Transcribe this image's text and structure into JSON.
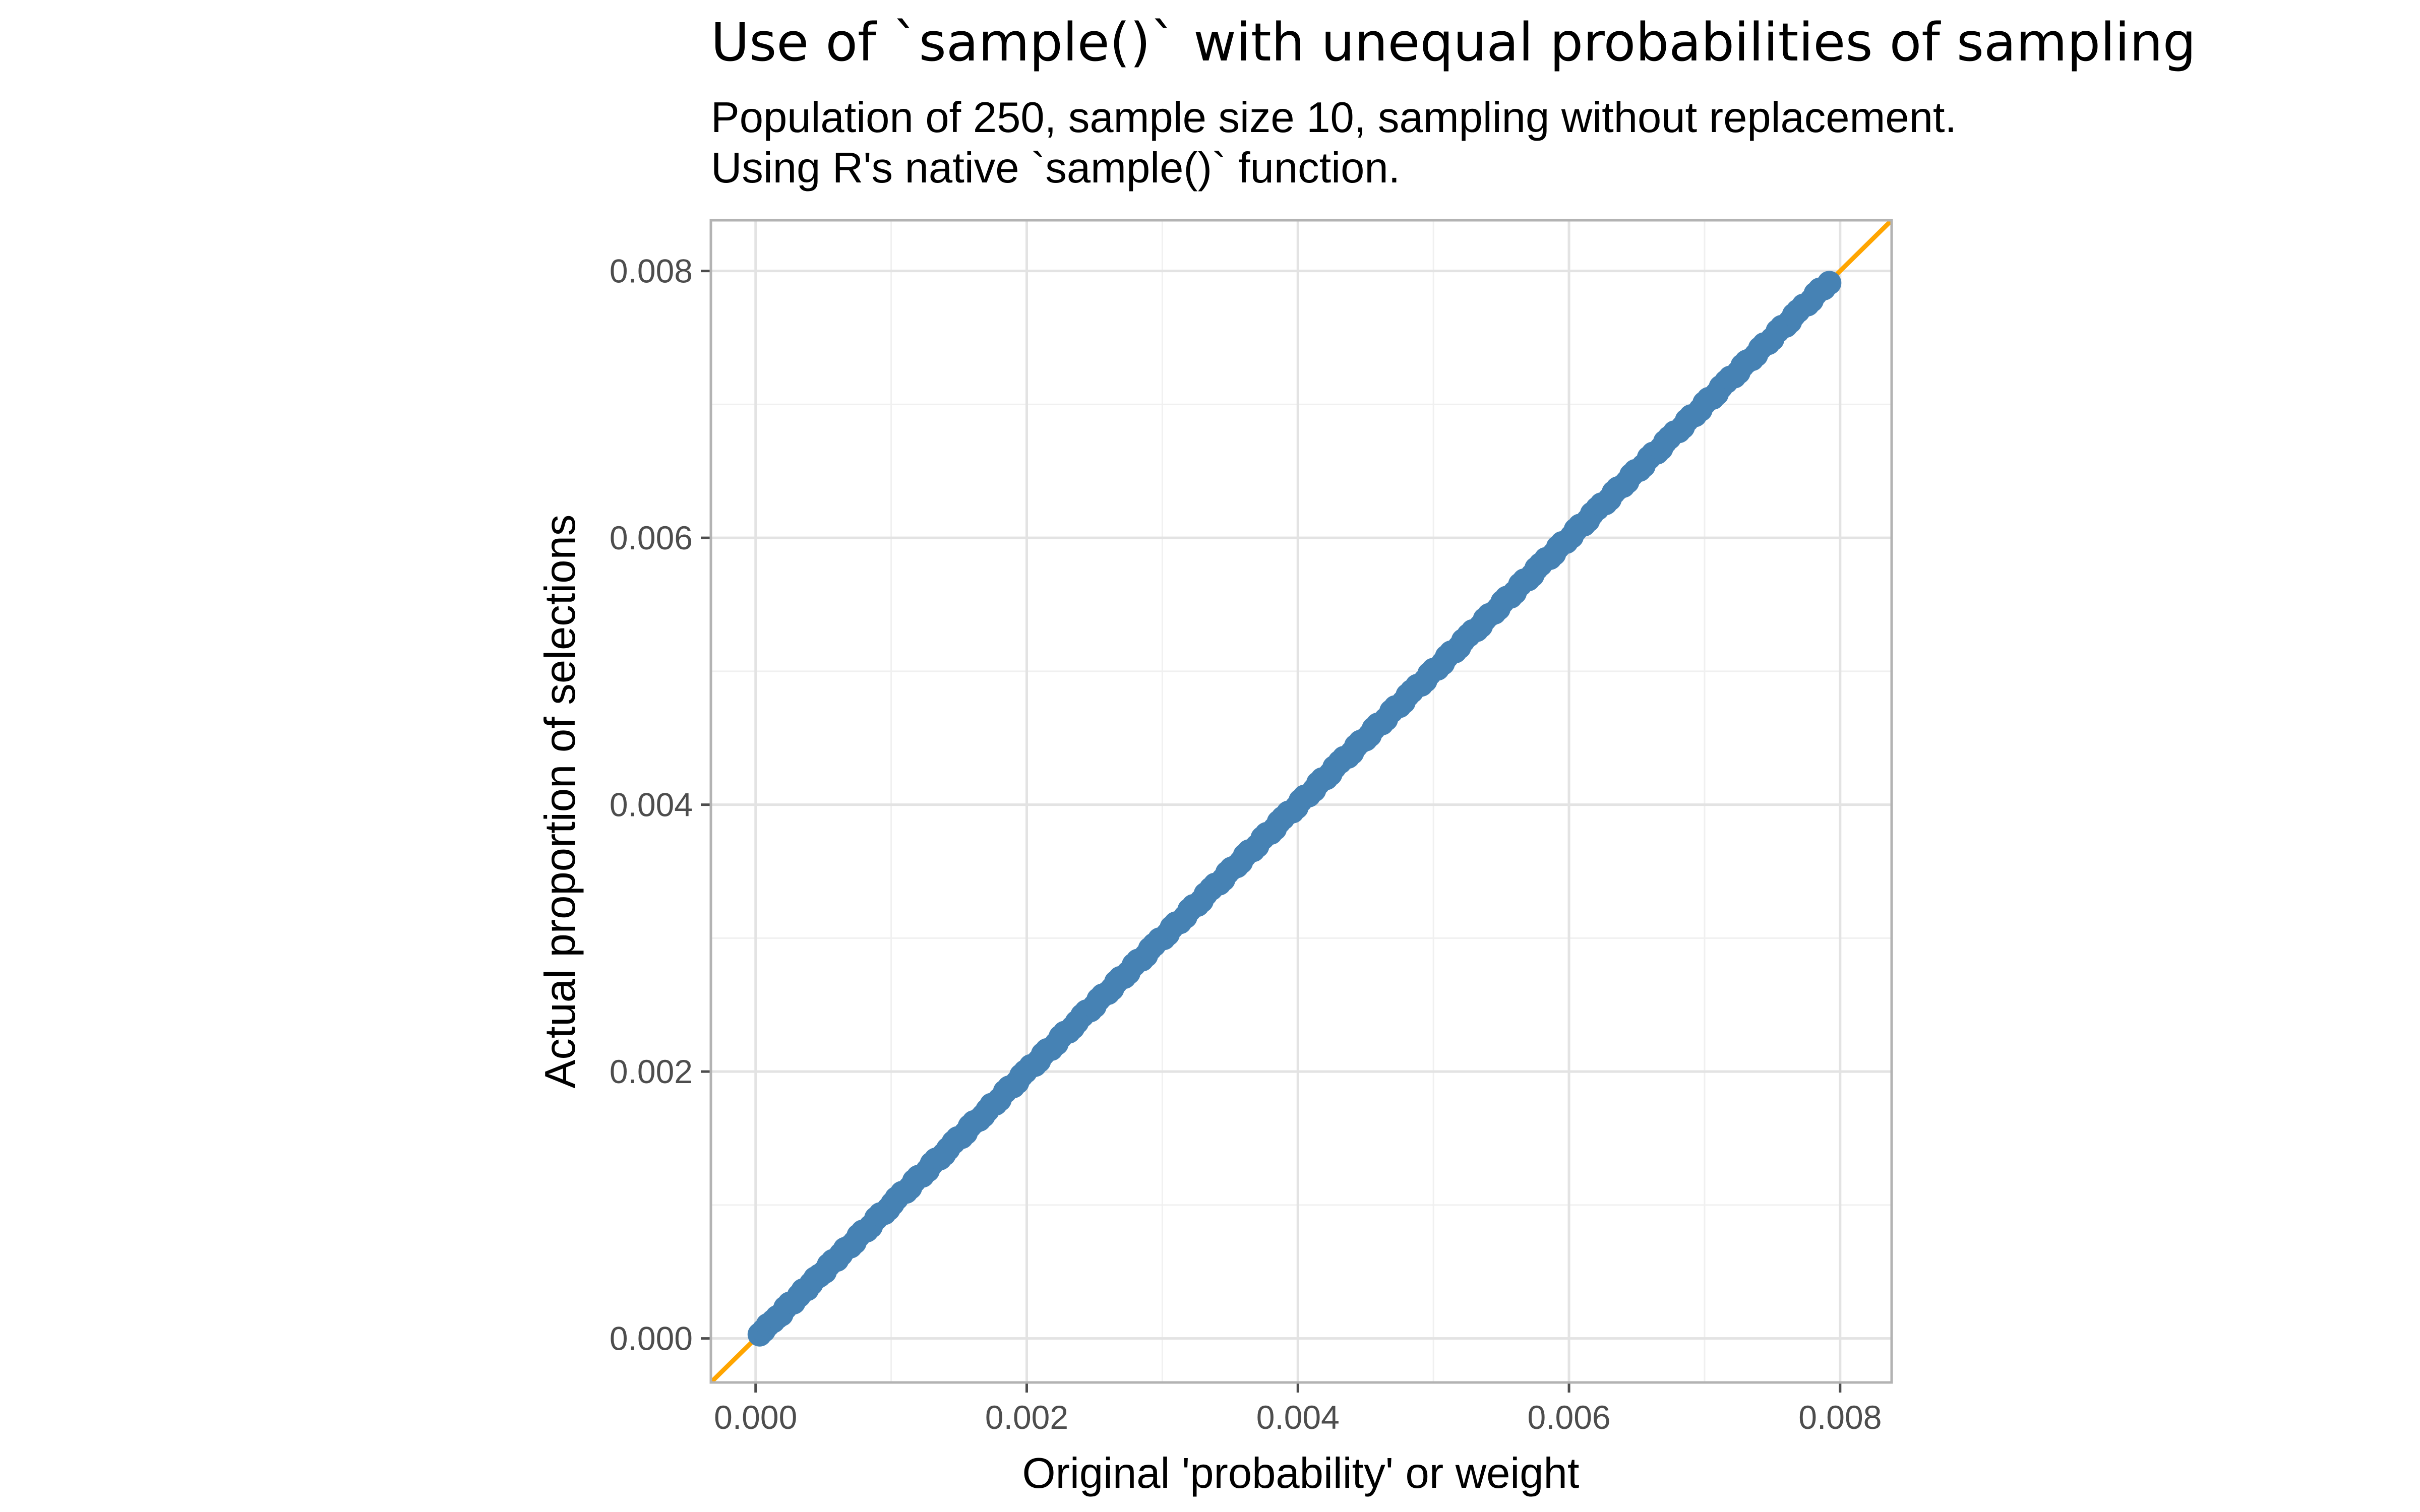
{
  "chart_data": {
    "type": "scatter",
    "title": "Use of `sample()` with unequal probabilities of sampling",
    "subtitle_lines": [
      "Population of 250, sample size 10, sampling without replacement.",
      "Using R's native `sample()` function."
    ],
    "xlabel": "Original 'probability' or weight",
    "ylabel": "Actual proportion of selections",
    "xlim": [
      -0.00033,
      0.00838
    ],
    "ylim": [
      -0.00033,
      0.00838
    ],
    "x_ticks": [
      0.0,
      0.002,
      0.004,
      0.006,
      0.008
    ],
    "x_tick_labels": [
      "0.000",
      "0.002",
      "0.004",
      "0.006",
      "0.008"
    ],
    "y_ticks": [
      0.0,
      0.002,
      0.004,
      0.006,
      0.008
    ],
    "y_tick_labels": [
      "0.000",
      "0.002",
      "0.004",
      "0.006",
      "0.008"
    ],
    "grid": true,
    "reference_line": {
      "slope": 1,
      "intercept": 0,
      "color": "#FFA500"
    },
    "point_color": "#4682B4",
    "n_points": 250,
    "x_min": 3e-05,
    "x_max": 0.00792,
    "series": [
      {
        "x": [
          3e-05,
          6e-05,
          9e-05,
          0.00013,
          0.00016,
          0.00019,
          0.00022,
          0.00025,
          0.00028,
          0.00032,
          0.00035,
          0.00038,
          0.00041,
          0.00044,
          0.00047,
          0.00051,
          0.00054,
          0.00057,
          0.0006,
          0.00063,
          0.00066,
          0.0007,
          0.00073,
          0.00076,
          0.00079,
          0.00082,
          0.00085,
          0.00089,
          0.00092,
          0.00095,
          0.00098,
          0.00101,
          0.00104,
          0.00108,
          0.00111,
          0.00114,
          0.00117,
          0.0012,
          0.00123,
          0.00127,
          0.0013,
          0.00133,
          0.00136,
          0.00139,
          0.00142,
          0.00146,
          0.00149,
          0.00152,
          0.00155,
          0.00158,
          0.00161,
          0.00165,
          0.00168,
          0.00171,
          0.00174,
          0.00177,
          0.0018,
          0.00184,
          0.00187,
          0.0019,
          0.00193,
          0.00196,
          0.00199,
          0.00203,
          0.00206,
          0.00209,
          0.00212,
          0.00215,
          0.00218,
          0.00222,
          0.00225,
          0.00228,
          0.00231,
          0.00234,
          0.00237,
          0.00241,
          0.00244,
          0.00247,
          0.0025,
          0.00253,
          0.00256,
          0.0026,
          0.00263,
          0.00266,
          0.00269,
          0.00272,
          0.00275,
          0.00279,
          0.00282,
          0.00285,
          0.00288,
          0.00291,
          0.00294,
          0.00298,
          0.00301,
          0.00304,
          0.00307,
          0.0031,
          0.00313,
          0.00317,
          0.0032,
          0.00323,
          0.00326,
          0.00329,
          0.00332,
          0.00336,
          0.00339,
          0.00342,
          0.00345,
          0.00348,
          0.00351,
          0.00355,
          0.00358,
          0.00361,
          0.00364,
          0.00367,
          0.0037,
          0.00374,
          0.00377,
          0.0038,
          0.00383,
          0.00386,
          0.00389,
          0.00393,
          0.00396,
          0.00399,
          0.00402,
          0.00405,
          0.00408,
          0.00412,
          0.00415,
          0.00418,
          0.00421,
          0.00424,
          0.00427,
          0.00431,
          0.00434,
          0.00437,
          0.0044,
          0.00443,
          0.00446,
          0.0045,
          0.00453,
          0.00456,
          0.00459,
          0.00462,
          0.00465,
          0.00469,
          0.00472,
          0.00475,
          0.00478,
          0.00481,
          0.00484,
          0.00488,
          0.00491,
          0.00494,
          0.00497,
          0.005,
          0.00503,
          0.00507,
          0.0051,
          0.00513,
          0.00516,
          0.00519,
          0.00522,
          0.00526,
          0.00529,
          0.00532,
          0.00535,
          0.00538,
          0.00541,
          0.00545,
          0.00548,
          0.00551,
          0.00554,
          0.00557,
          0.0056,
          0.00564,
          0.00567,
          0.0057,
          0.00573,
          0.00576,
          0.00579,
          0.00583,
          0.00586,
          0.00589,
          0.00592,
          0.00595,
          0.00598,
          0.00602,
          0.00605,
          0.00608,
          0.00611,
          0.00614,
          0.00617,
          0.00621,
          0.00624,
          0.00627,
          0.0063,
          0.00633,
          0.00636,
          0.0064,
          0.00643,
          0.00646,
          0.00649,
          0.00652,
          0.00655,
          0.00659,
          0.00662,
          0.00665,
          0.00668,
          0.00671,
          0.00674,
          0.00678,
          0.00681,
          0.00684,
          0.00687,
          0.0069,
          0.00693,
          0.00697,
          0.007,
          0.00703,
          0.00706,
          0.00709,
          0.00712,
          0.00716,
          0.00719,
          0.00722,
          0.00725,
          0.00728,
          0.00731,
          0.00735,
          0.00738,
          0.00741,
          0.00744,
          0.00747,
          0.0075,
          0.00754,
          0.00757,
          0.0076,
          0.00763,
          0.00766,
          0.00769,
          0.00773,
          0.00776,
          0.00779,
          0.00782,
          0.00785,
          0.00788,
          0.00792
        ],
        "y": [
          3e-05,
          6e-05,
          0.0001,
          0.00013,
          0.00016,
          0.00018,
          0.00023,
          0.00026,
          0.00027,
          0.00032,
          0.00036,
          0.00037,
          0.00041,
          0.00045,
          0.00047,
          0.0005,
          0.00055,
          0.00058,
          0.00059,
          0.00063,
          0.00067,
          0.00069,
          0.00072,
          0.00077,
          0.0008,
          0.00081,
          0.00084,
          0.0009,
          0.00093,
          0.00094,
          0.00097,
          0.00101,
          0.00105,
          0.00109,
          0.0011,
          0.00113,
          0.00118,
          0.00121,
          0.00122,
          0.00126,
          0.00131,
          0.00134,
          0.00135,
          0.00138,
          0.00142,
          0.00147,
          0.0015,
          0.00151,
          0.00154,
          0.00159,
          0.00162,
          0.00164,
          0.00167,
          0.00171,
          0.00175,
          0.00176,
          0.00179,
          0.00185,
          0.00188,
          0.00189,
          0.00192,
          0.00197,
          0.002,
          0.00204,
          0.00205,
          0.00208,
          0.00213,
          0.00216,
          0.00217,
          0.00221,
          0.00226,
          0.00229,
          0.0023,
          0.00233,
          0.00237,
          0.00242,
          0.00245,
          0.00246,
          0.00249,
          0.00254,
          0.00257,
          0.00259,
          0.00262,
          0.00267,
          0.0027,
          0.00271,
          0.00274,
          0.0028,
          0.00283,
          0.00284,
          0.00287,
          0.00292,
          0.00295,
          0.00299,
          0.003,
          0.00303,
          0.00308,
          0.00311,
          0.00312,
          0.00316,
          0.00321,
          0.00324,
          0.00325,
          0.00328,
          0.00333,
          0.00337,
          0.0034,
          0.00341,
          0.00344,
          0.00349,
          0.00352,
          0.00354,
          0.00357,
          0.00362,
          0.00365,
          0.00366,
          0.00369,
          0.00375,
          0.00378,
          0.00379,
          0.00382,
          0.00387,
          0.0039,
          0.00394,
          0.00395,
          0.00398,
          0.00403,
          0.00406,
          0.00407,
          0.00411,
          0.00416,
          0.00419,
          0.0042,
          0.00423,
          0.00428,
          0.00432,
          0.00435,
          0.00436,
          0.00439,
          0.00444,
          0.00447,
          0.00449,
          0.00452,
          0.00457,
          0.0046,
          0.00461,
          0.00464,
          0.0047,
          0.00473,
          0.00474,
          0.00477,
          0.00482,
          0.00485,
          0.00489,
          0.0049,
          0.00493,
          0.00498,
          0.00501,
          0.00502,
          0.00506,
          0.00511,
          0.00514,
          0.00515,
          0.00518,
          0.00523,
          0.00527,
          0.0053,
          0.00531,
          0.00534,
          0.00539,
          0.00542,
          0.00544,
          0.00547,
          0.00552,
          0.00555,
          0.00556,
          0.00559,
          0.00565,
          0.00568,
          0.00569,
          0.00572,
          0.00577,
          0.0058,
          0.00584,
          0.00585,
          0.00588,
          0.00593,
          0.00596,
          0.00597,
          0.00601,
          0.00606,
          0.00609,
          0.0061,
          0.00613,
          0.00618,
          0.00622,
          0.00625,
          0.00626,
          0.00629,
          0.00634,
          0.00637,
          0.00639,
          0.00642,
          0.00647,
          0.0065,
          0.00651,
          0.00654,
          0.0066,
          0.00663,
          0.00664,
          0.00667,
          0.00672,
          0.00675,
          0.00679,
          0.0068,
          0.00683,
          0.00688,
          0.00691,
          0.00692,
          0.00696,
          0.00701,
          0.00704,
          0.00705,
          0.00708,
          0.00713,
          0.00717,
          0.0072,
          0.00721,
          0.00724,
          0.00729,
          0.00732,
          0.00734,
          0.00737,
          0.00742,
          0.00745,
          0.00746,
          0.00749,
          0.00755,
          0.00758,
          0.00759,
          0.00762,
          0.00767,
          0.0077,
          0.00774,
          0.00775,
          0.00778,
          0.00783,
          0.00786,
          0.00787,
          0.00791
        ]
      }
    ]
  }
}
